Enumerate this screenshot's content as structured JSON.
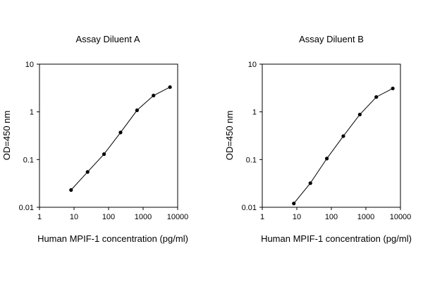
{
  "chart_data": [
    {
      "type": "line",
      "title": "Assay Diluent A",
      "xlabel": "Human MPIF-1 concentration (pg/ml)",
      "ylabel": "OD=450 nm",
      "xscale": "log",
      "yscale": "log",
      "xlim": [
        1,
        10000
      ],
      "ylim": [
        0.01,
        10
      ],
      "xticks": [
        "1",
        "10",
        "100",
        "1000",
        "10000"
      ],
      "yticks": [
        "0.01",
        "0.1",
        "1",
        "10"
      ],
      "grid": false,
      "marker": "dot",
      "series_color": "#000000",
      "series": [
        {
          "x": [
            8.2,
            24.7,
            74,
            222,
            667,
            2000,
            6000
          ],
          "y": [
            0.023,
            0.055,
            0.13,
            0.37,
            1.08,
            2.2,
            3.3
          ]
        }
      ]
    },
    {
      "type": "line",
      "title": "Assay Diluent B",
      "xlabel": "Human MPIF-1 concentration (pg/ml)",
      "ylabel": "OD=450 nm",
      "xscale": "log",
      "yscale": "log",
      "xlim": [
        1,
        10000
      ],
      "ylim": [
        0.01,
        10
      ],
      "xticks": [
        "1",
        "10",
        "100",
        "1000",
        "10000"
      ],
      "yticks": [
        "0.01",
        "0.1",
        "1",
        "10"
      ],
      "grid": false,
      "marker": "dot",
      "series_color": "#000000",
      "series": [
        {
          "x": [
            8.2,
            24.7,
            74,
            222,
            667,
            2000,
            6000
          ],
          "y": [
            0.012,
            0.032,
            0.105,
            0.31,
            0.88,
            2.05,
            3.1
          ]
        }
      ]
    }
  ]
}
